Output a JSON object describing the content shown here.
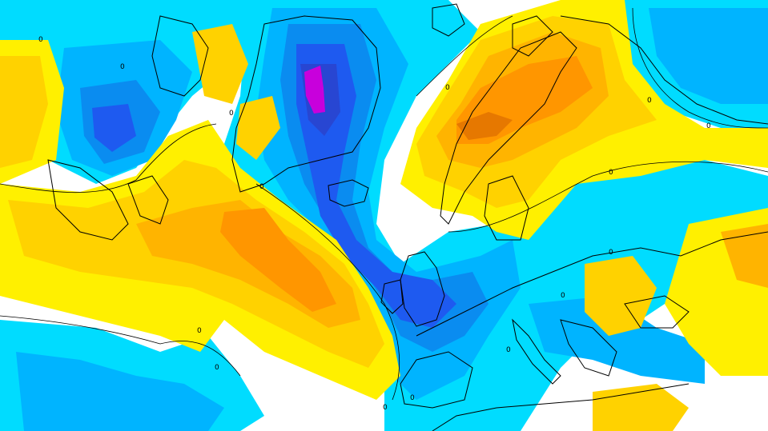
{
  "map": {
    "palette": {
      "white": "#ffffff",
      "light_cyan": "#00dcff",
      "cyan": "#00b4ff",
      "sky_blue": "#0a8cf0",
      "blue": "#1e5af0",
      "deep_blue": "#2846d2",
      "magenta": "#c800dc",
      "pale_yellow": "#fff000",
      "yellow": "#ffd200",
      "gold": "#ffb400",
      "orange": "#ff9600",
      "dark_orange": "#e67800",
      "coastline": "#000000"
    },
    "contour_labels": [
      "0",
      "0",
      "0",
      "0",
      "0",
      "0",
      "0",
      "0",
      "0",
      "0",
      "0",
      "0",
      "0",
      "0",
      "0"
    ]
  }
}
